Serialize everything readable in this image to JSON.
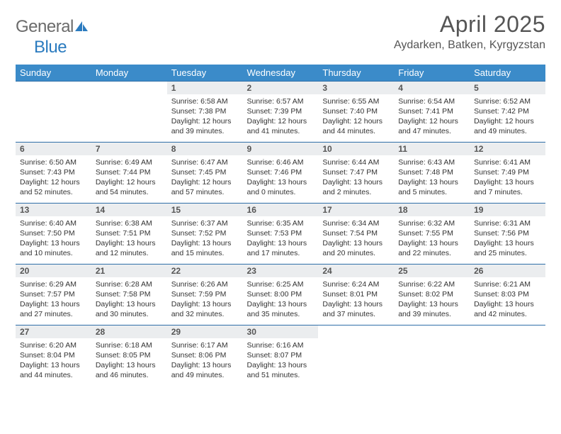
{
  "brand": {
    "text_gray": "General",
    "text_blue": "Blue"
  },
  "title": "April 2025",
  "location": "Aydarken, Batken, Kyrgyzstan",
  "colors": {
    "header_bg": "#3b8bc9",
    "header_text": "#ffffff",
    "daynum_bg": "#ebedef",
    "rule": "#2f6fa8",
    "body_text": "#333333",
    "title_text": "#555555"
  },
  "weekdays": [
    "Sunday",
    "Monday",
    "Tuesday",
    "Wednesday",
    "Thursday",
    "Friday",
    "Saturday"
  ],
  "weeks": [
    [
      {
        "n": "",
        "lines": []
      },
      {
        "n": "",
        "lines": []
      },
      {
        "n": "1",
        "lines": [
          "Sunrise: 6:58 AM",
          "Sunset: 7:38 PM",
          "Daylight: 12 hours and 39 minutes."
        ]
      },
      {
        "n": "2",
        "lines": [
          "Sunrise: 6:57 AM",
          "Sunset: 7:39 PM",
          "Daylight: 12 hours and 41 minutes."
        ]
      },
      {
        "n": "3",
        "lines": [
          "Sunrise: 6:55 AM",
          "Sunset: 7:40 PM",
          "Daylight: 12 hours and 44 minutes."
        ]
      },
      {
        "n": "4",
        "lines": [
          "Sunrise: 6:54 AM",
          "Sunset: 7:41 PM",
          "Daylight: 12 hours and 47 minutes."
        ]
      },
      {
        "n": "5",
        "lines": [
          "Sunrise: 6:52 AM",
          "Sunset: 7:42 PM",
          "Daylight: 12 hours and 49 minutes."
        ]
      }
    ],
    [
      {
        "n": "6",
        "lines": [
          "Sunrise: 6:50 AM",
          "Sunset: 7:43 PM",
          "Daylight: 12 hours and 52 minutes."
        ]
      },
      {
        "n": "7",
        "lines": [
          "Sunrise: 6:49 AM",
          "Sunset: 7:44 PM",
          "Daylight: 12 hours and 54 minutes."
        ]
      },
      {
        "n": "8",
        "lines": [
          "Sunrise: 6:47 AM",
          "Sunset: 7:45 PM",
          "Daylight: 12 hours and 57 minutes."
        ]
      },
      {
        "n": "9",
        "lines": [
          "Sunrise: 6:46 AM",
          "Sunset: 7:46 PM",
          "Daylight: 13 hours and 0 minutes."
        ]
      },
      {
        "n": "10",
        "lines": [
          "Sunrise: 6:44 AM",
          "Sunset: 7:47 PM",
          "Daylight: 13 hours and 2 minutes."
        ]
      },
      {
        "n": "11",
        "lines": [
          "Sunrise: 6:43 AM",
          "Sunset: 7:48 PM",
          "Daylight: 13 hours and 5 minutes."
        ]
      },
      {
        "n": "12",
        "lines": [
          "Sunrise: 6:41 AM",
          "Sunset: 7:49 PM",
          "Daylight: 13 hours and 7 minutes."
        ]
      }
    ],
    [
      {
        "n": "13",
        "lines": [
          "Sunrise: 6:40 AM",
          "Sunset: 7:50 PM",
          "Daylight: 13 hours and 10 minutes."
        ]
      },
      {
        "n": "14",
        "lines": [
          "Sunrise: 6:38 AM",
          "Sunset: 7:51 PM",
          "Daylight: 13 hours and 12 minutes."
        ]
      },
      {
        "n": "15",
        "lines": [
          "Sunrise: 6:37 AM",
          "Sunset: 7:52 PM",
          "Daylight: 13 hours and 15 minutes."
        ]
      },
      {
        "n": "16",
        "lines": [
          "Sunrise: 6:35 AM",
          "Sunset: 7:53 PM",
          "Daylight: 13 hours and 17 minutes."
        ]
      },
      {
        "n": "17",
        "lines": [
          "Sunrise: 6:34 AM",
          "Sunset: 7:54 PM",
          "Daylight: 13 hours and 20 minutes."
        ]
      },
      {
        "n": "18",
        "lines": [
          "Sunrise: 6:32 AM",
          "Sunset: 7:55 PM",
          "Daylight: 13 hours and 22 minutes."
        ]
      },
      {
        "n": "19",
        "lines": [
          "Sunrise: 6:31 AM",
          "Sunset: 7:56 PM",
          "Daylight: 13 hours and 25 minutes."
        ]
      }
    ],
    [
      {
        "n": "20",
        "lines": [
          "Sunrise: 6:29 AM",
          "Sunset: 7:57 PM",
          "Daylight: 13 hours and 27 minutes."
        ]
      },
      {
        "n": "21",
        "lines": [
          "Sunrise: 6:28 AM",
          "Sunset: 7:58 PM",
          "Daylight: 13 hours and 30 minutes."
        ]
      },
      {
        "n": "22",
        "lines": [
          "Sunrise: 6:26 AM",
          "Sunset: 7:59 PM",
          "Daylight: 13 hours and 32 minutes."
        ]
      },
      {
        "n": "23",
        "lines": [
          "Sunrise: 6:25 AM",
          "Sunset: 8:00 PM",
          "Daylight: 13 hours and 35 minutes."
        ]
      },
      {
        "n": "24",
        "lines": [
          "Sunrise: 6:24 AM",
          "Sunset: 8:01 PM",
          "Daylight: 13 hours and 37 minutes."
        ]
      },
      {
        "n": "25",
        "lines": [
          "Sunrise: 6:22 AM",
          "Sunset: 8:02 PM",
          "Daylight: 13 hours and 39 minutes."
        ]
      },
      {
        "n": "26",
        "lines": [
          "Sunrise: 6:21 AM",
          "Sunset: 8:03 PM",
          "Daylight: 13 hours and 42 minutes."
        ]
      }
    ],
    [
      {
        "n": "27",
        "lines": [
          "Sunrise: 6:20 AM",
          "Sunset: 8:04 PM",
          "Daylight: 13 hours and 44 minutes."
        ]
      },
      {
        "n": "28",
        "lines": [
          "Sunrise: 6:18 AM",
          "Sunset: 8:05 PM",
          "Daylight: 13 hours and 46 minutes."
        ]
      },
      {
        "n": "29",
        "lines": [
          "Sunrise: 6:17 AM",
          "Sunset: 8:06 PM",
          "Daylight: 13 hours and 49 minutes."
        ]
      },
      {
        "n": "30",
        "lines": [
          "Sunrise: 6:16 AM",
          "Sunset: 8:07 PM",
          "Daylight: 13 hours and 51 minutes."
        ]
      },
      {
        "n": "",
        "lines": []
      },
      {
        "n": "",
        "lines": []
      },
      {
        "n": "",
        "lines": []
      }
    ]
  ]
}
